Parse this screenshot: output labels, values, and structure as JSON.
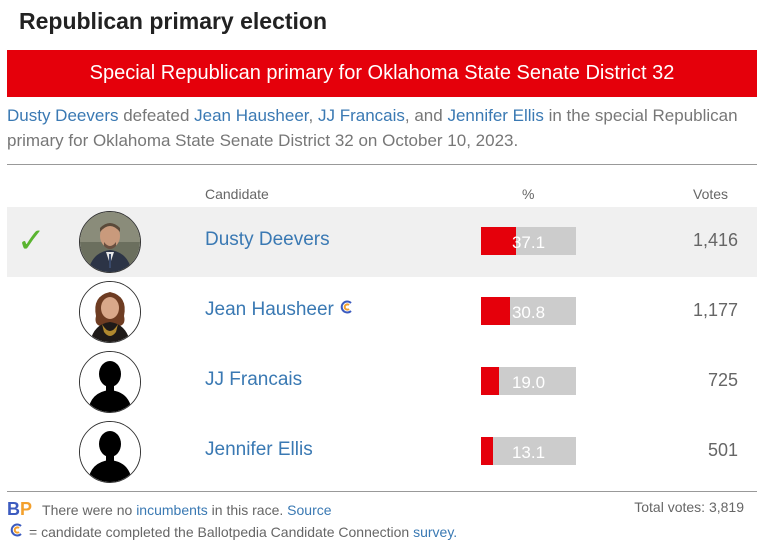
{
  "page_title": "Republican primary election",
  "race_title": "Special Republican primary for Oklahoma State Senate District 32",
  "summary": {
    "winner": "Dusty Deevers",
    "verb": "defeated",
    "loser1": "Jean Hausheer",
    "loser2": "JJ Francais",
    "conj": ", and",
    "loser3": "Jennifer Ellis",
    "tail": "in the special Republican primary for Oklahoma State Senate District 32 on October 10, 2023."
  },
  "columns": {
    "candidate": "Candidate",
    "percent": "%",
    "votes": "Votes"
  },
  "candidates": [
    {
      "name": "Dusty Deevers",
      "percent": "37.1",
      "pct_value": 37.1,
      "votes": "1,416",
      "winner": true,
      "photo": "dusty-deevers-photo",
      "cc": false
    },
    {
      "name": "Jean Hausheer",
      "percent": "30.8",
      "pct_value": 30.8,
      "votes": "1,177",
      "winner": false,
      "photo": "jean-hausheer-photo",
      "cc": true
    },
    {
      "name": "JJ Francais",
      "percent": "19.0",
      "pct_value": 19.0,
      "votes": "725",
      "winner": false,
      "photo": "silhouette-placeholder",
      "cc": false
    },
    {
      "name": "Jennifer Ellis",
      "percent": "13.1",
      "pct_value": 13.1,
      "votes": "501",
      "winner": false,
      "photo": "silhouette-placeholder",
      "cc": false
    }
  ],
  "winner_mark": "✓",
  "footer": {
    "logo_b": "B",
    "logo_p": "P",
    "incumbent_pre": "There were no",
    "incumbent_link": "incumbents",
    "incumbent_post": "in this race.",
    "source_link": "Source",
    "total_votes": "Total votes: 3,819",
    "cc_note": "= candidate completed the Ballotpedia Candidate Connection",
    "survey_link": "survey."
  },
  "colors": {
    "accent_red": "#e5000b",
    "link_blue": "#3a79b3",
    "check_green": "#5ab430",
    "bar_track": "#cccccc"
  },
  "icons": {
    "winner": "checkmark-icon",
    "candidate_connection": "candidate-connection-icon"
  }
}
